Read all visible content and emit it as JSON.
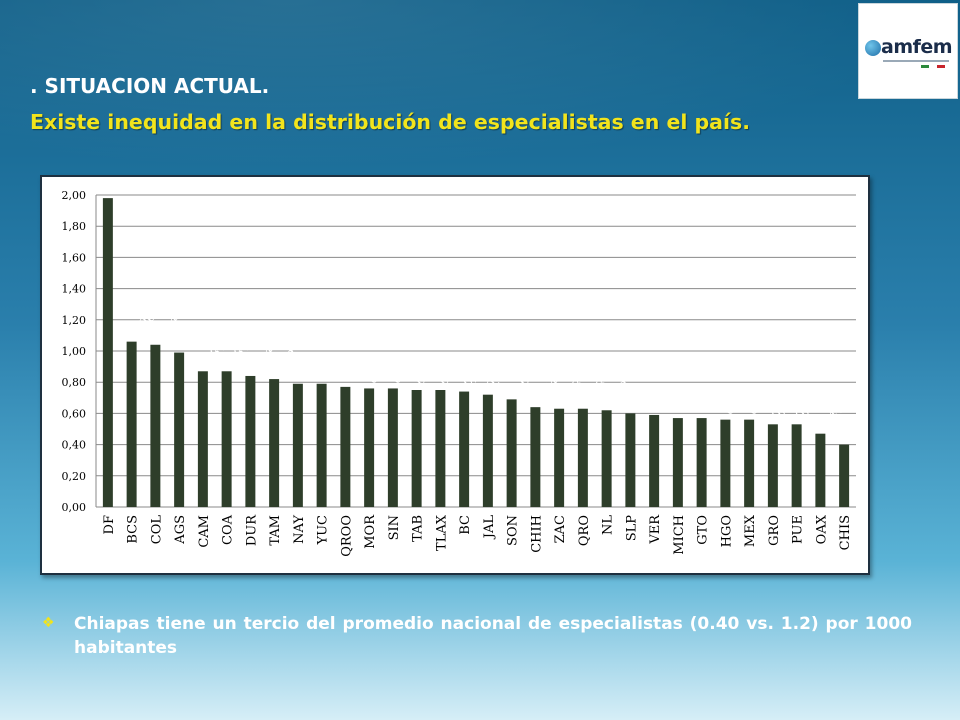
{
  "slide": {
    "heading": ". SITUACION ACTUAL.",
    "subheading": "Existe inequidad en la distribución de especialistas en el país.",
    "logo_text": "amfem",
    "bullet_icon": "diamond-bullet-icon",
    "bullet_text": "Chiapas tiene un tercio del promedio nacional de especialistas (0.40 vs. 1.2)  por 1000 habitantes"
  },
  "colors": {
    "bar": "#2e3e2a",
    "subheading": "#f2e41c"
  },
  "chart_data": {
    "type": "bar",
    "categories": [
      "DF",
      "BCS",
      "COL",
      "AGS",
      "CAM",
      "COA",
      "DUR",
      "TAM",
      "NAY",
      "YUC",
      "QROO",
      "MOR",
      "SIN",
      "TAB",
      "TLAX",
      "BC",
      "JAL",
      "SON",
      "CHIH",
      "ZAC",
      "QRO",
      "NL",
      "SLP",
      "VER",
      "MICH",
      "GTO",
      "HGO",
      "MEX",
      "GRO",
      "PUE",
      "OAX",
      "CHIS"
    ],
    "values": [
      1.98,
      1.06,
      1.04,
      0.99,
      0.87,
      0.87,
      0.84,
      0.82,
      0.79,
      0.79,
      0.77,
      0.76,
      0.76,
      0.75,
      0.75,
      0.74,
      0.72,
      0.69,
      0.64,
      0.63,
      0.63,
      0.62,
      0.6,
      0.59,
      0.57,
      0.57,
      0.56,
      0.56,
      0.53,
      0.53,
      0.47,
      0.4
    ],
    "data_labels": [
      "1,98",
      "1,06",
      "1,04",
      "0,99",
      "0,87",
      "0,87",
      "0,84",
      "0,82",
      "0,79",
      "0,79",
      "0,77",
      "0,76",
      "0,76",
      "0,75",
      "0,75",
      "0,74",
      "0,72",
      "0,69",
      "0,64",
      "0,63",
      "0,63",
      "0,62",
      "0,60",
      "0,59",
      "0,57",
      "0,57",
      "0,56",
      "0,56",
      "0,53",
      "0,53",
      "0,47",
      "0,40"
    ],
    "y_ticks": [
      "0,00",
      "0,20",
      "0,40",
      "0,60",
      "0,80",
      "1,00",
      "1,20",
      "1,40",
      "1,60",
      "1,80",
      "2,00"
    ],
    "ylim": [
      0,
      2.0
    ],
    "grid": true,
    "title": "",
    "xlabel": "",
    "ylabel": ""
  }
}
